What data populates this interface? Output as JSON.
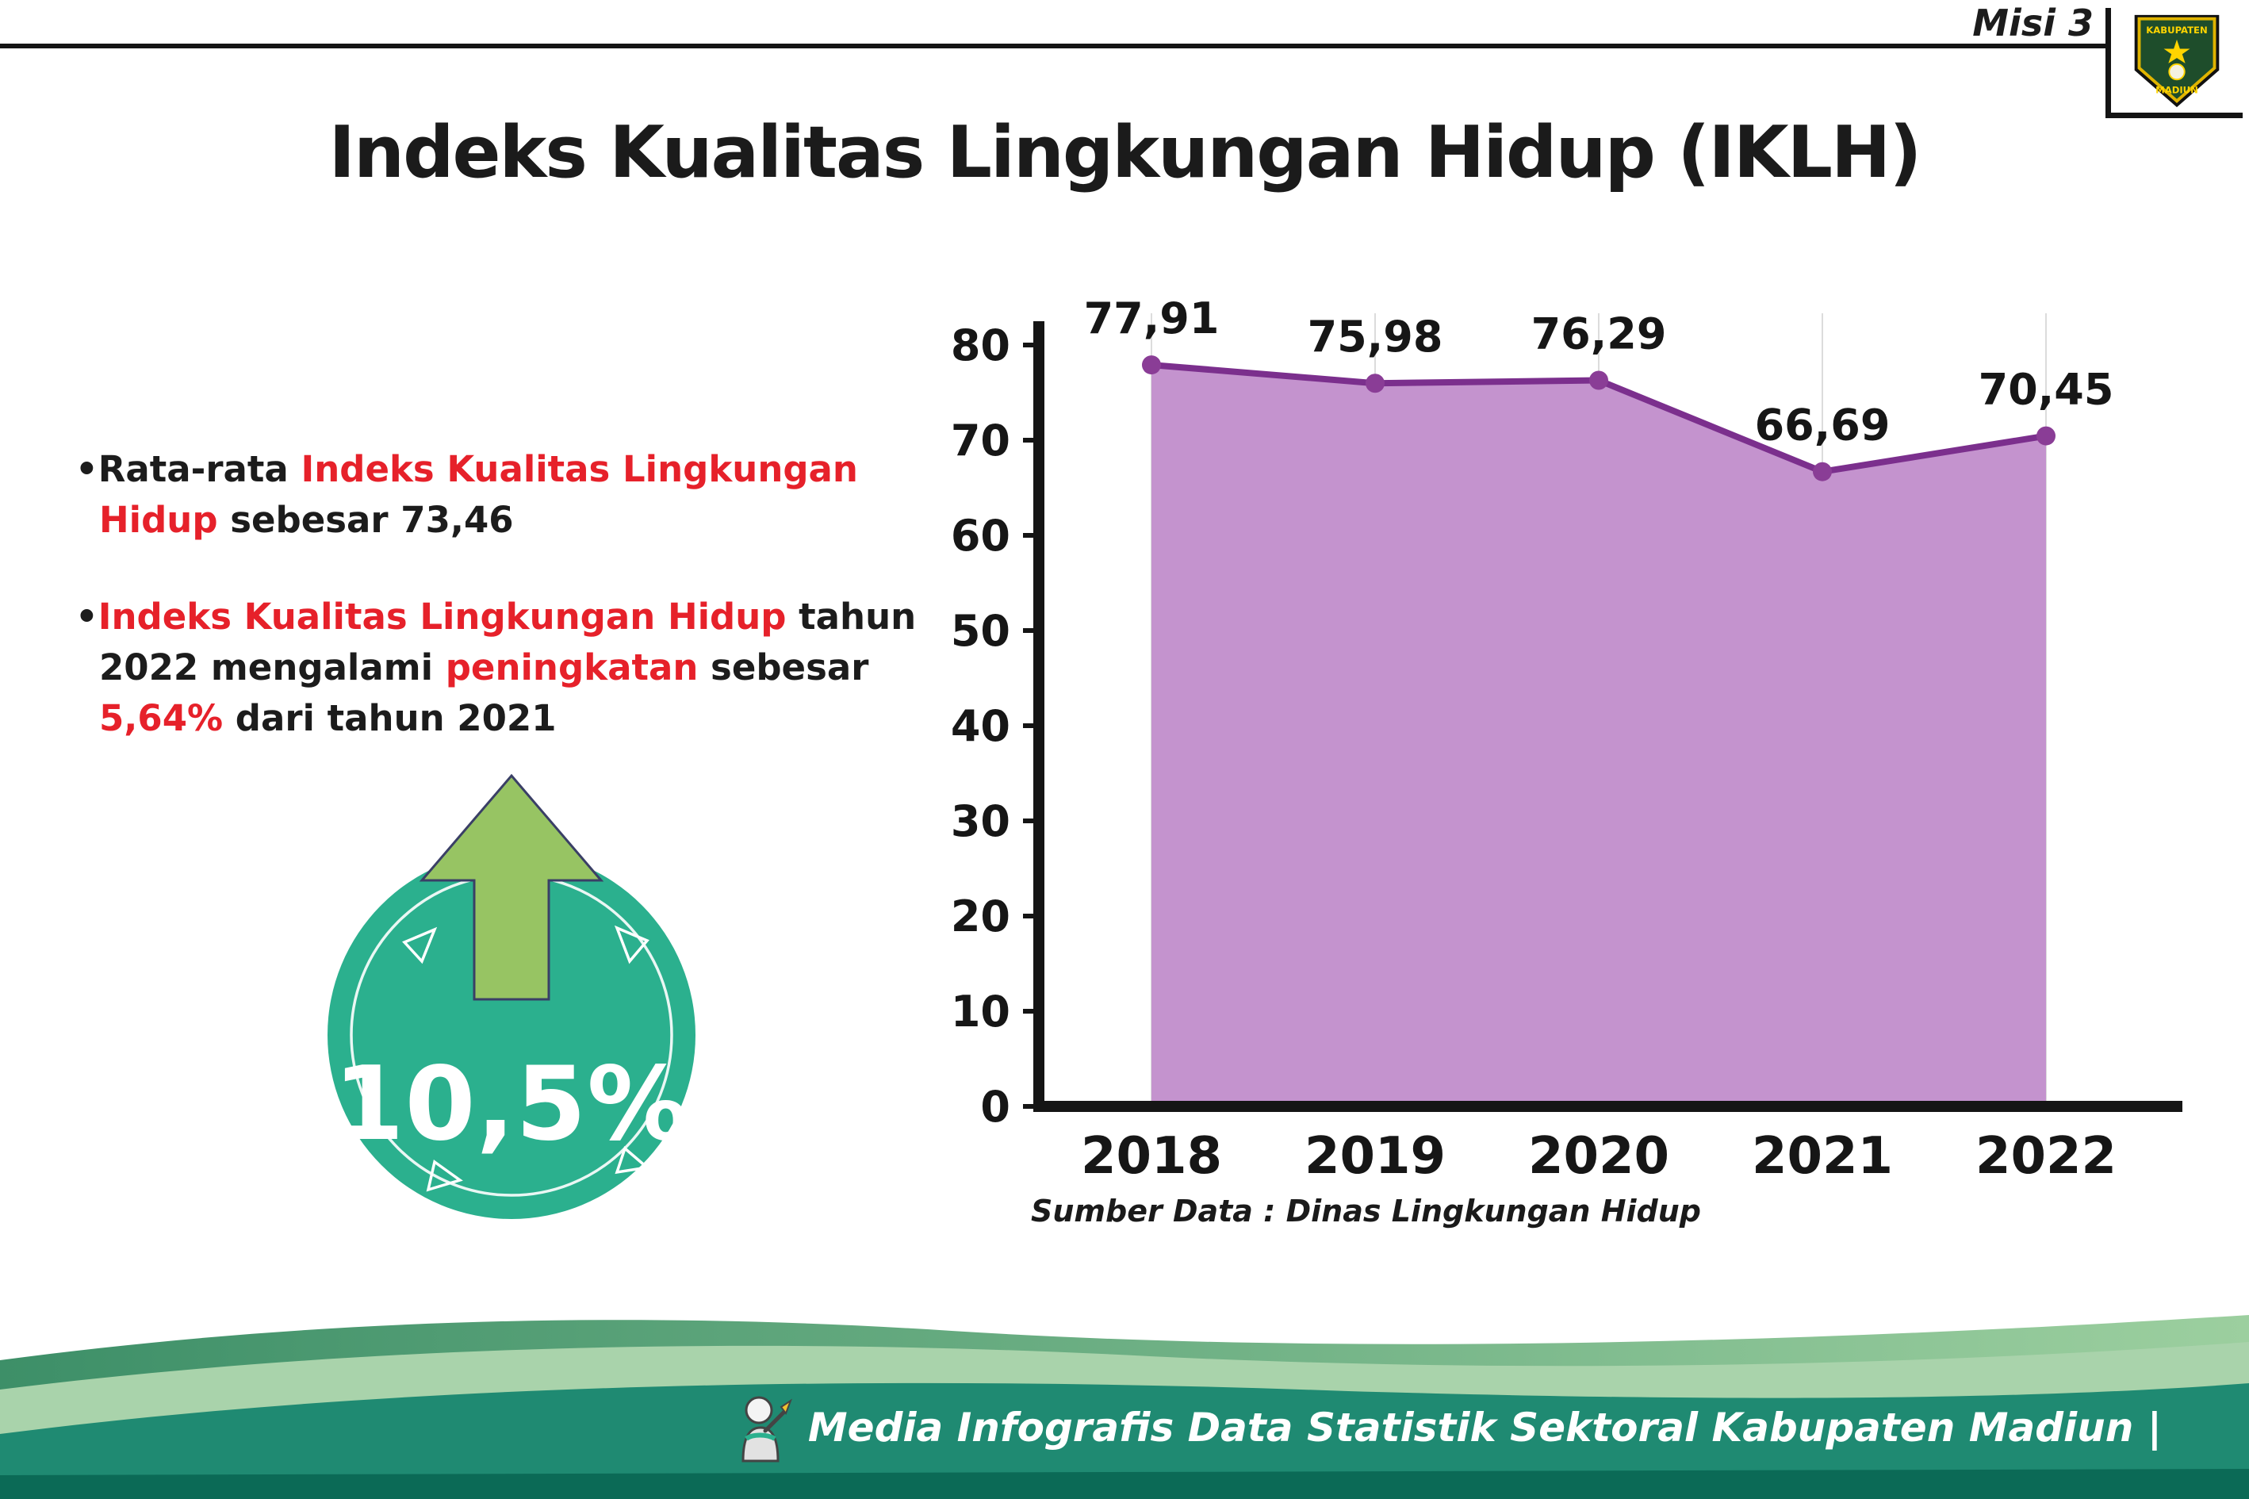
{
  "page": {
    "misi_label": "Misi 3",
    "title": "Indeks Kualitas Lingkungan Hidup (IKLH)"
  },
  "logo": {
    "top_text": "KABUPATEN",
    "bottom_text": "MADIUN"
  },
  "bullets": {
    "bullet_char": "•",
    "b1": {
      "p1": "Rata-rata ",
      "p2": "Indeks Kualitas Lingkungan Hidup",
      "p3": " sebesar 73,46"
    },
    "b2": {
      "p1": "Indeks Kualitas Lingkungan Hidup",
      "p2": " tahun 2022 mengalami ",
      "p3": "peningkatan",
      "p4": " sebesar ",
      "p5": "5,64%",
      "p6": " dari tahun 2021"
    }
  },
  "badge": {
    "value": "10,5%"
  },
  "chart_data": {
    "type": "area",
    "title": "Indeks Kualitas Lingkungan Hidup (IKLH)",
    "categories": [
      "2018",
      "2019",
      "2020",
      "2021",
      "2022"
    ],
    "values": [
      77.91,
      75.98,
      76.29,
      66.69,
      70.45
    ],
    "value_labels": [
      "77,91",
      "75,98",
      "76,29",
      "66,69",
      "70,45"
    ],
    "ylim": [
      0,
      80
    ],
    "yticks": [
      0,
      10,
      20,
      30,
      40,
      50,
      60,
      70,
      80
    ],
    "grid": "vertical-light",
    "legend": "none",
    "line_color": "#7b2f8d",
    "marker_color": "#8a3d96",
    "fill_color": "#c493ce",
    "source_label": "Sumber Data : Dinas Lingkungan Hidup"
  },
  "footer": {
    "text": "Media Infografis Data Statistik Sektoral Kabupaten Madiun |"
  },
  "colors": {
    "accent_red": "#e6212a",
    "badge_teal": "#2bb08e",
    "arrow_green": "#97c463"
  }
}
